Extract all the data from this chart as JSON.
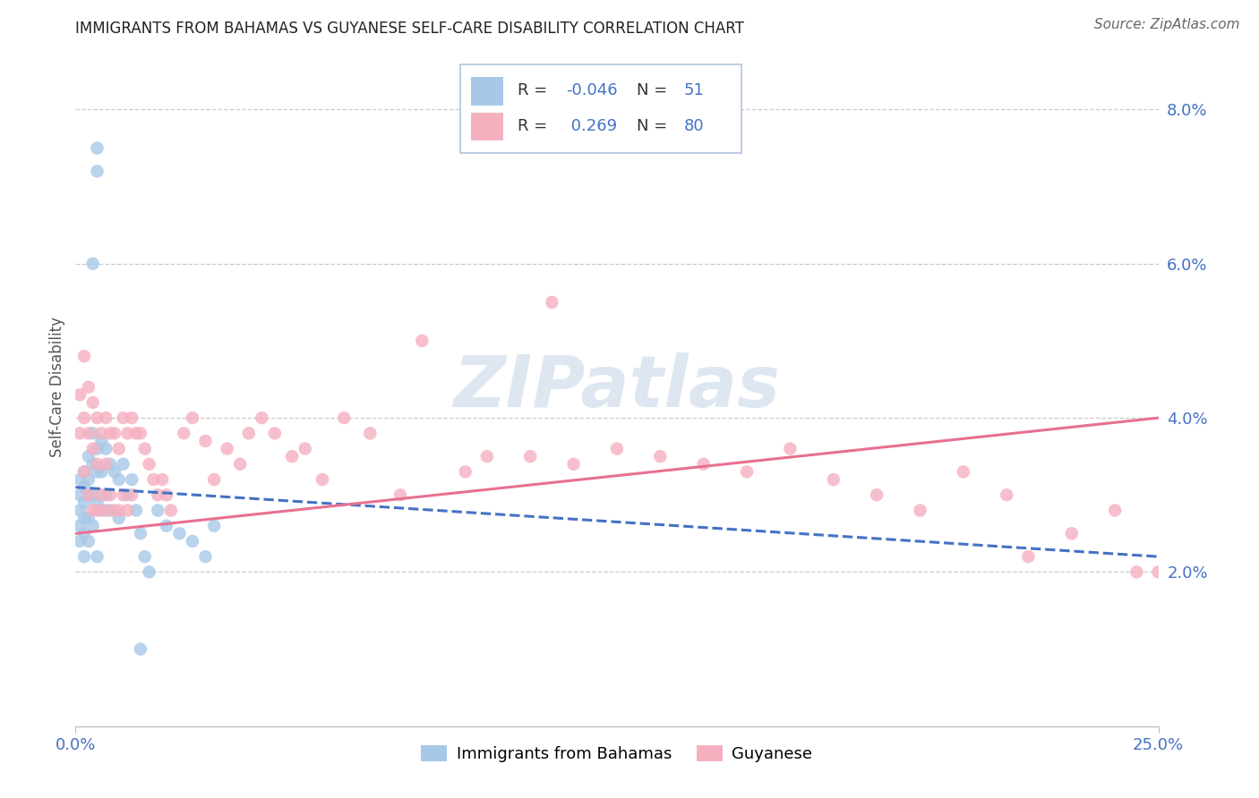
{
  "title": "IMMIGRANTS FROM BAHAMAS VS GUYANESE SELF-CARE DISABILITY CORRELATION CHART",
  "source": "Source: ZipAtlas.com",
  "ylabel": "Self-Care Disability",
  "bahamas_R": -0.046,
  "bahamas_N": 51,
  "guyanese_R": 0.269,
  "guyanese_N": 80,
  "bahamas_color": "#a8c8e8",
  "guyanese_color": "#f5b0c0",
  "bahamas_line_color": "#4472c4",
  "guyanese_line_color": "#e87090",
  "xlim": [
    0.0,
    0.25
  ],
  "ylim": [
    0.0,
    0.088
  ],
  "yticks": [
    0.02,
    0.04,
    0.06,
    0.08
  ],
  "ytick_labels": [
    "2.0%",
    "4.0%",
    "6.0%",
    "8.0%"
  ],
  "xtick_positions": [
    0.0,
    0.25
  ],
  "xtick_labels": [
    "0.0%",
    "25.0%"
  ],
  "legend_R_label": "R = ",
  "legend_N_label": "N = ",
  "watermark": "ZIPatlas",
  "watermark_color": "#c8d8e8",
  "tick_color": "#4472c4",
  "grid_color": "#cccccc",
  "title_fontsize": 12,
  "axis_label_fontsize": 12,
  "tick_fontsize": 13,
  "legend_fontsize": 13,
  "source_fontsize": 11
}
